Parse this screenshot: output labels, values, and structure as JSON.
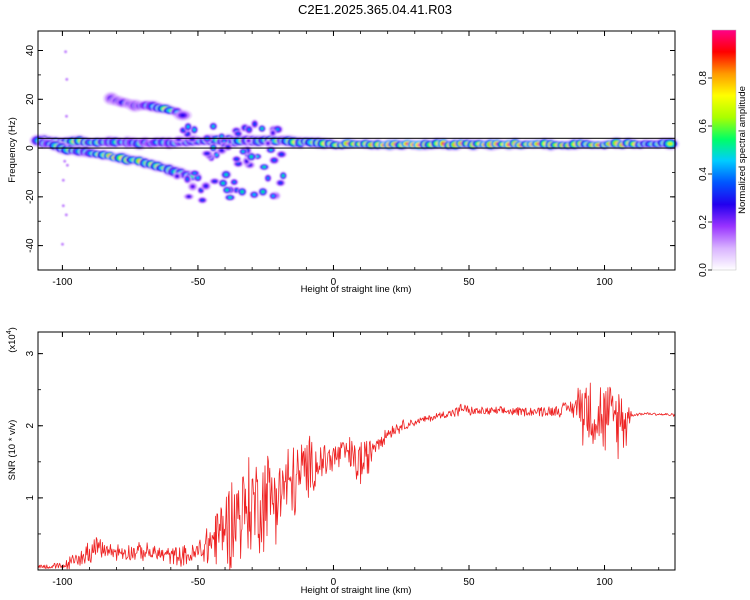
{
  "title": "C2E1.2025.365.04.41.R03",
  "chart_data": [
    {
      "type": "heatmap",
      "xlabel": "Height of straight line (km)",
      "ylabel": "Frequency (Hz)",
      "xlim": [
        -109,
        126
      ],
      "ylim": [
        -50,
        48
      ],
      "xticks": [
        -100,
        -50,
        0,
        50,
        100
      ],
      "yticks": [
        -40,
        -20,
        0,
        20,
        40
      ],
      "colorbar": {
        "label": "Normalized spectral amplitude",
        "range": [
          0,
          1
        ],
        "ticks": [
          0.0,
          0.2,
          0.4,
          0.6,
          0.8
        ],
        "colors": [
          "#ffffff",
          "#d9b3ff",
          "#9933ff",
          "#2200ee",
          "#0055ff",
          "#00ccff",
          "#00ff66",
          "#aaff00",
          "#ffff00",
          "#ff9900",
          "#ff0000",
          "#ff0088"
        ]
      },
      "reference_band_hz": [
        0,
        4
      ],
      "features": [
        {
          "name": "trailing positive-shift trace",
          "x": [
            -109,
            -90,
            -75,
            -60,
            -50,
            -40,
            -30,
            -20,
            -10,
            0,
            20,
            40,
            60,
            80,
            100,
            126
          ],
          "freq_hz": [
            3,
            2.5,
            2,
            2,
            3,
            3,
            3,
            3,
            2.5,
            1.5,
            1.5,
            1.5,
            1.5,
            1.5,
            1.5,
            2
          ],
          "amplitude": [
            0.6,
            0.6,
            0.5,
            0.45,
            0.5,
            0.55,
            0.6,
            0.6,
            0.7,
            0.8,
            0.95,
            0.9,
            0.9,
            0.85,
            0.8,
            0.7
          ]
        },
        {
          "name": "descending negative-shift trace",
          "x": [
            -109,
            -100,
            -90,
            -80,
            -70,
            -60,
            -50
          ],
          "freq_hz": [
            3,
            0,
            -2,
            -4,
            -6,
            -9,
            -12
          ],
          "amplitude": [
            0.55,
            0.55,
            0.6,
            0.8,
            0.7,
            0.6,
            0.5
          ]
        },
        {
          "name": "upper arm",
          "x": [
            -82,
            -75,
            -68,
            -62,
            -58,
            -55
          ],
          "freq_hz": [
            20,
            18,
            17,
            16,
            15,
            13
          ],
          "amplitude": [
            0.3,
            0.35,
            0.4,
            0.7,
            0.5,
            0.3
          ]
        },
        {
          "name": "scattered cluster",
          "x_range": [
            -58,
            -18
          ],
          "freq_range_hz": [
            -22,
            10
          ],
          "amplitude": 0.4
        }
      ]
    },
    {
      "type": "line",
      "xlabel": "Height of straight line (km)",
      "ylabel": "SNR (10 * v/v)",
      "y_scale_label": "(x10",
      "y_scale_exponent": "4",
      "xlim": [
        -109,
        126
      ],
      "ylim": [
        0,
        3.3
      ],
      "xticks": [
        -100,
        -50,
        0,
        50,
        100
      ],
      "yticks": [
        1,
        2,
        3
      ],
      "series": [
        {
          "name": "SNR",
          "color": "#ee2222",
          "x": [
            -109,
            -100,
            -92,
            -88,
            -80,
            -70,
            -60,
            -52,
            -48,
            -45,
            -40,
            -35,
            -30,
            -25,
            -20,
            -15,
            -10,
            -5,
            0,
            5,
            8,
            10,
            12,
            15,
            20,
            25,
            30,
            40,
            46,
            48,
            50,
            60,
            70,
            80,
            88,
            92,
            95,
            100,
            105,
            108,
            110,
            115,
            120,
            126
          ],
          "y": [
            0.05,
            0.05,
            0.2,
            0.3,
            0.25,
            0.25,
            0.2,
            0.2,
            0.3,
            0.4,
            0.6,
            0.8,
            0.9,
            1.0,
            1.1,
            1.2,
            1.4,
            1.5,
            1.55,
            1.65,
            1.5,
            1.5,
            1.5,
            1.75,
            1.9,
            2.0,
            2.05,
            2.15,
            2.2,
            2.25,
            2.2,
            2.2,
            2.2,
            2.2,
            2.25,
            2.3,
            2.2,
            2.1,
            2.1,
            2.1,
            2.15,
            2.17,
            2.16,
            2.15
          ],
          "noise_amplitude": [
            0.03,
            0.05,
            0.15,
            0.15,
            0.12,
            0.12,
            0.12,
            0.15,
            0.25,
            0.4,
            0.55,
            0.7,
            0.7,
            0.7,
            0.6,
            0.55,
            0.45,
            0.3,
            0.25,
            0.2,
            0.3,
            0.4,
            0.3,
            0.15,
            0.1,
            0.08,
            0.05,
            0.05,
            0.08,
            0.08,
            0.06,
            0.06,
            0.06,
            0.08,
            0.1,
            0.5,
            0.5,
            0.5,
            0.5,
            0.45,
            0.02,
            0.02,
            0.02,
            0.02
          ]
        }
      ]
    }
  ]
}
